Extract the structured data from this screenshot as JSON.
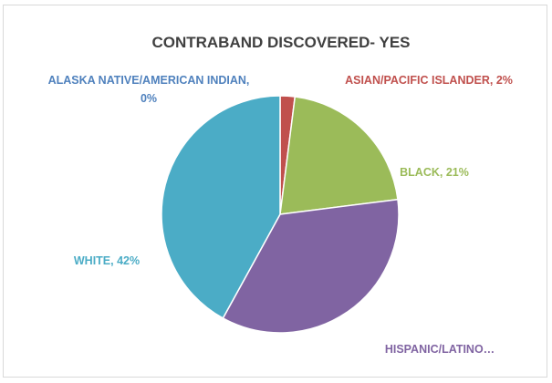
{
  "chart_data": {
    "type": "pie",
    "title": "CONTRABAND DISCOVERED- YES",
    "slices": [
      {
        "category": "ASIAN/PACIFIC ISLANDER",
        "value": 2,
        "color": "#C0504D",
        "label_lines": [
          "ASIAN/PACIFIC ISLANDER, 2%"
        ]
      },
      {
        "category": "BLACK",
        "value": 21,
        "color": "#9BBB59",
        "label_lines": [
          "BLACK, 21%"
        ]
      },
      {
        "category": "HISPANIC/LATINO",
        "value": 35,
        "color": "#8064A2",
        "label_lines": [
          "HISPANIC/LATINO…"
        ]
      },
      {
        "category": "WHITE",
        "value": 42,
        "color": "#4BACC6",
        "label_lines": [
          "WHITE, 42%"
        ]
      },
      {
        "category": "ALASKA NATIVE/AMERICAN INDIAN",
        "value": 0,
        "color": "#4F81BD",
        "label_lines": [
          "ALASKA NATIVE/AMERICAN INDIAN,",
          "0%"
        ]
      }
    ],
    "start_angle_deg": 0,
    "direction": "clockwise",
    "legend": "none"
  }
}
